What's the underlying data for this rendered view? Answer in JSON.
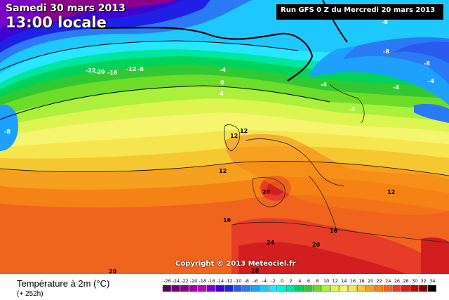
{
  "header": {
    "date": "Samedi 30 mars 2013",
    "time": "13:00 locale",
    "run": "Run GFS 0 Z du Mercredi 20 mars 2013"
  },
  "footer": {
    "title": "Température à 2m (°C)",
    "subtitle": "(+ 252h)",
    "copyright": "Copyright © 2013 Meteociel.fr"
  },
  "legend": {
    "ticks": [
      "-26",
      "-24",
      "-22",
      "-20",
      "-18",
      "-16",
      "-14",
      "-12",
      "-10",
      "-8",
      "-6",
      "-4",
      "-2",
      "0",
      "2",
      "4",
      "6",
      "8",
      "10",
      "12",
      "14",
      "16",
      "18",
      "20",
      "22",
      "24",
      "26",
      "28",
      "30",
      "32",
      "34"
    ],
    "colors": [
      "#5a005a",
      "#700070",
      "#8a008a",
      "#a300a3",
      "#c000c0",
      "#7a00c8",
      "#4000d0",
      "#1e20e6",
      "#2a5af0",
      "#2a7af5",
      "#1ea0ff",
      "#1ec8ff",
      "#28e6ff",
      "#00f5dc",
      "#00e6a0",
      "#00d25a",
      "#32c832",
      "#6edc28",
      "#aaf03c",
      "#dcf550",
      "#f5f56e",
      "#f5e650",
      "#f5c832",
      "#f5a01e",
      "#f58214",
      "#f0641e",
      "#e63c28",
      "#d21e1e",
      "#b40a0a",
      "#8c0000",
      "#000000"
    ]
  },
  "map": {
    "contour_labels": [
      {
        "value": "-22"
      },
      {
        "value": "-20"
      },
      {
        "value": "-16"
      },
      {
        "value": "-12"
      },
      {
        "value": "-8"
      },
      {
        "value": "-8"
      },
      {
        "value": "-4"
      },
      {
        "value": "0"
      },
      {
        "value": "4"
      },
      {
        "value": "-8"
      },
      {
        "value": "-8"
      },
      {
        "value": "-8"
      },
      {
        "value": "-4"
      },
      {
        "value": "-4"
      },
      {
        "value": "-4"
      },
      {
        "value": "-4"
      },
      {
        "value": "12"
      },
      {
        "value": "12"
      },
      {
        "value": "12"
      },
      {
        "value": "16"
      },
      {
        "value": "20"
      },
      {
        "value": "16"
      },
      {
        "value": "24"
      },
      {
        "value": "20"
      },
      {
        "value": "20"
      },
      {
        "value": "28"
      },
      {
        "value": "12"
      }
    ]
  }
}
